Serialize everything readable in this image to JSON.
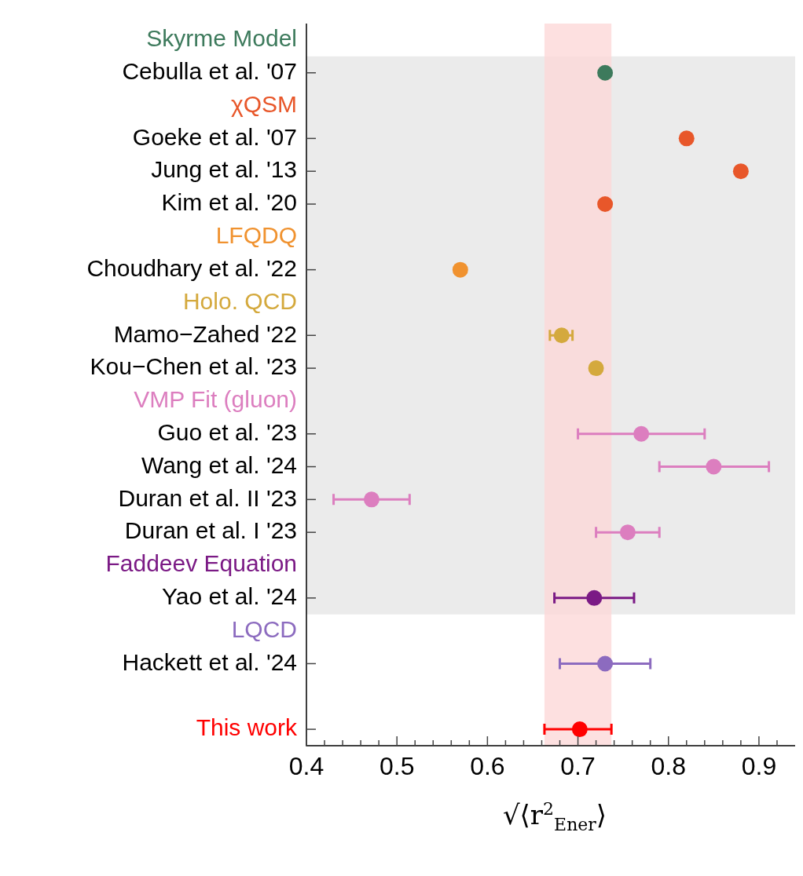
{
  "chart_data": {
    "type": "scatter",
    "orientation": "horizontal",
    "xlabel": "√⟨r$^{2}$$_{Ener}$⟩",
    "categories": [
      null,
      "Cebulla et al. '07",
      null,
      "Goeke et al. '07",
      "Jung et al. '13",
      "Kim et al. '20",
      null,
      "Choudhary et al. '22",
      null,
      "Mamo−Zahed '22",
      "Kou−Chen et al. '23",
      null,
      "Guo et al. '23",
      "Wang et al. '24",
      "Duran et al. II '23",
      "Duran et al. I '23",
      null,
      "Yao et al. '24",
      null,
      "Hackett et al. '24",
      null,
      null
    ],
    "series": [
      {
        "name": "Skyrme Model",
        "color": "#3d7a5c",
        "values": [
          null,
          0.73,
          null,
          null,
          null,
          null,
          null,
          null,
          null,
          null,
          null,
          null,
          null,
          null,
          null,
          null,
          null,
          null,
          null,
          null,
          null,
          null
        ]
      },
      {
        "name": "χQSM",
        "color": "#e8572a",
        "values": [
          null,
          null,
          null,
          0.82,
          0.88,
          0.73,
          null,
          null,
          null,
          null,
          null,
          null,
          null,
          null,
          null,
          null,
          null,
          null,
          null,
          null,
          null,
          null
        ]
      },
      {
        "name": "LFQDQ",
        "color": "#f0922f",
        "values": [
          null,
          null,
          null,
          null,
          null,
          null,
          null,
          0.57,
          null,
          null,
          null,
          null,
          null,
          null,
          null,
          null,
          null,
          null,
          null,
          null,
          null,
          null
        ]
      },
      {
        "name": "Holo. QCD",
        "color": "#d4a93d",
        "values": [
          null,
          null,
          null,
          null,
          null,
          null,
          null,
          null,
          null,
          0.682,
          0.72,
          null,
          null,
          null,
          null,
          null,
          null,
          null,
          null,
          null,
          null,
          null
        ],
        "errors": [
          null,
          null,
          null,
          null,
          null,
          null,
          null,
          null,
          null,
          [
            0.669,
            0.694
          ],
          null,
          null,
          null,
          null,
          null,
          null,
          null,
          null,
          null,
          null,
          null,
          null
        ]
      },
      {
        "name": "VMP Fit (gluon)",
        "color": "#dc7ebf",
        "values": [
          null,
          null,
          null,
          null,
          null,
          null,
          null,
          null,
          null,
          null,
          null,
          null,
          0.77,
          0.85,
          0.472,
          0.755,
          null,
          null,
          null,
          null,
          null,
          null
        ],
        "errors": [
          null,
          null,
          null,
          null,
          null,
          null,
          null,
          null,
          null,
          null,
          null,
          null,
          [
            0.7,
            0.84
          ],
          [
            0.79,
            0.911
          ],
          [
            0.43,
            0.514
          ],
          [
            0.72,
            0.79
          ],
          null,
          null,
          null,
          null,
          null,
          null
        ]
      },
      {
        "name": "Faddeev Equation",
        "color": "#7b1a85",
        "values": [
          null,
          null,
          null,
          null,
          null,
          null,
          null,
          null,
          null,
          null,
          null,
          null,
          null,
          null,
          null,
          null,
          null,
          0.718,
          null,
          null,
          null,
          null
        ],
        "errors": [
          null,
          null,
          null,
          null,
          null,
          null,
          null,
          null,
          null,
          null,
          null,
          null,
          null,
          null,
          null,
          null,
          null,
          [
            0.674,
            0.762
          ],
          null,
          null,
          null,
          null
        ]
      },
      {
        "name": "LQCD",
        "color": "#8c6bbf",
        "values": [
          null,
          null,
          null,
          null,
          null,
          null,
          null,
          null,
          null,
          null,
          null,
          null,
          null,
          null,
          null,
          null,
          null,
          null,
          null,
          0.73,
          null,
          null
        ],
        "errors": [
          null,
          null,
          null,
          null,
          null,
          null,
          null,
          null,
          null,
          null,
          null,
          null,
          null,
          null,
          null,
          null,
          null,
          null,
          null,
          [
            0.68,
            0.78
          ],
          null,
          null
        ]
      },
      {
        "name": "This work",
        "color": "#ff0000",
        "values": [
          null,
          null,
          null,
          null,
          null,
          null,
          null,
          null,
          null,
          null,
          null,
          null,
          null,
          null,
          null,
          null,
          null,
          null,
          null,
          null,
          null,
          0.702
        ],
        "errors": [
          null,
          null,
          null,
          null,
          null,
          null,
          null,
          null,
          null,
          null,
          null,
          null,
          null,
          null,
          null,
          null,
          null,
          null,
          null,
          null,
          null,
          [
            0.663,
            0.737
          ]
        ]
      }
    ],
    "xlim": [
      0.4,
      0.94
    ],
    "xticks": [
      0.4,
      {
        "value": 0.42,
        "label": null
      },
      {
        "value": 0.44,
        "label": null
      },
      {
        "value": 0.46,
        "label": null
      },
      {
        "value": 0.48,
        "label": null
      },
      0.5,
      {
        "value": 0.52,
        "label": null
      },
      {
        "value": 0.54,
        "label": null
      },
      {
        "value": 0.56,
        "label": null
      },
      {
        "value": 0.58,
        "label": null
      },
      0.6,
      {
        "value": 0.62,
        "label": null
      },
      {
        "value": 0.64,
        "label": null
      },
      {
        "value": 0.66,
        "label": null
      },
      {
        "value": 0.68,
        "label": null
      },
      0.7,
      {
        "value": 0.72,
        "label": null
      },
      {
        "value": 0.74,
        "label": null
      },
      {
        "value": 0.76,
        "label": null
      },
      {
        "value": 0.78,
        "label": null
      },
      0.8,
      {
        "value": 0.82,
        "label": null
      },
      {
        "value": 0.84,
        "label": null
      },
      {
        "value": 0.86,
        "label": null
      },
      {
        "value": 0.88,
        "label": null
      },
      0.9,
      {
        "value": 0.92,
        "label": null
      }
    ],
    "bands": [
      {
        "axis": "y",
        "from": "Cebulla et al. '07",
        "to": "Yao et al. '24",
        "color": "#ebebeb"
      },
      {
        "axis": "x",
        "from": 0.663,
        "to": 0.737,
        "color": "#fcd8d8"
      }
    ],
    "marker": "circle",
    "grid": false,
    "legend": false
  }
}
